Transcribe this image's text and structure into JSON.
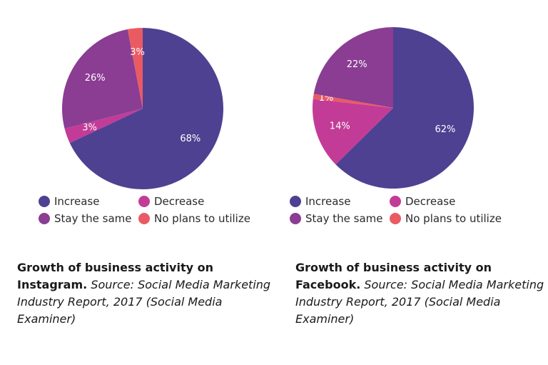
{
  "colors": {
    "increase": "#4e4192",
    "decrease": "#c23c97",
    "stay_the_same": "#8a3d93",
    "no_plans": "#ea5a63",
    "slice_label": "#ffffff"
  },
  "chart_data": [
    {
      "type": "pie",
      "slices": [
        {
          "label": "Increase",
          "value": 68,
          "value_label": "68%",
          "color_key": "increase"
        },
        {
          "label": "Decrease",
          "value": 3,
          "value_label": "3%",
          "color_key": "decrease"
        },
        {
          "label": "Stay the same",
          "value": 26,
          "value_label": "26%",
          "color_key": "stay_the_same"
        },
        {
          "label": "No plans to utilize",
          "value": 3,
          "value_label": "3%",
          "color_key": "no_plans"
        }
      ],
      "legend": [
        {
          "label": "Increase",
          "color_key": "increase"
        },
        {
          "label": "Decrease",
          "color_key": "decrease"
        },
        {
          "label": "Stay the same",
          "color_key": "stay_the_same"
        },
        {
          "label": "No plans to utilize",
          "color_key": "no_plans"
        }
      ],
      "legend_position": "bottom",
      "caption": {
        "bold_part_1": "Growth of business activity on",
        "bold_part_2": "Instagram.",
        "italic_part": "Source: Social Media Marketing Industry Report, 2017 (Social Media Examiner)"
      }
    },
    {
      "type": "pie",
      "slices": [
        {
          "label": "Increase",
          "value": 62,
          "value_label": "62%",
          "color_key": "increase"
        },
        {
          "label": "Decrease",
          "value": 14,
          "value_label": "14%",
          "color_key": "decrease"
        },
        {
          "label": "No plans to utilize",
          "value": 1,
          "value_label": "1%",
          "color_key": "no_plans"
        },
        {
          "label": "Stay the same",
          "value": 22,
          "value_label": "22%",
          "color_key": "stay_the_same"
        }
      ],
      "legend": [
        {
          "label": "Increase",
          "color_key": "increase"
        },
        {
          "label": "Decrease",
          "color_key": "decrease"
        },
        {
          "label": "Stay the same",
          "color_key": "stay_the_same"
        },
        {
          "label": "No plans to utilize",
          "color_key": "no_plans"
        }
      ],
      "legend_position": "bottom",
      "caption": {
        "bold_part_1": "Growth of business activity on",
        "bold_part_2": "Facebook.",
        "italic_part": "Source: Social Media Marketing Industry Report, 2017 (Social Media Examiner)"
      }
    }
  ]
}
